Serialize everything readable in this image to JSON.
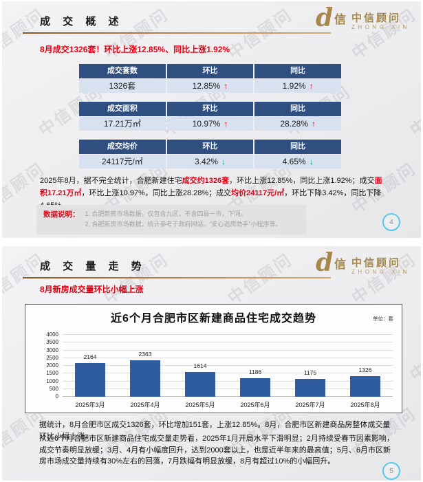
{
  "brand": {
    "swoosh_glyph": "d",
    "xin_glyph": "信",
    "name_cn": "中信顾问",
    "name_en": "ZHONG XIN",
    "gold_color": "#a5874c"
  },
  "watermark_text": "中信顾问",
  "colors": {
    "table_header_bg": "#2f4f80",
    "table_row_bg": "#d7e1f0",
    "accent_red": "#e60012",
    "accent_green": "#00a651",
    "bar_blue": "#2e5c9e",
    "circle_border": "#57c8e8",
    "header_underline": "#c9935e"
  },
  "slide1": {
    "title": "成 交 概 述",
    "headline": "8月成交1326套！环比上涨12.85%、同比上涨1.92%",
    "tables": [
      {
        "headers": [
          "成交套数",
          "环比",
          "同比"
        ],
        "row": [
          {
            "text": "1326套",
            "arrow": ""
          },
          {
            "text": "12.85%",
            "arrow": "up"
          },
          {
            "text": "1.92%",
            "arrow": "up"
          }
        ]
      },
      {
        "headers": [
          "成交面积",
          "环比",
          "同比"
        ],
        "row": [
          {
            "text": "17.21万㎡",
            "arrow": ""
          },
          {
            "text": "10.97%",
            "arrow": "up"
          },
          {
            "text": "28.28%",
            "arrow": "up"
          }
        ]
      },
      {
        "headers": [
          "成交均价",
          "环比",
          "同比"
        ],
        "row": [
          {
            "text": "24117元/㎡",
            "arrow": ""
          },
          {
            "text": "3.42%",
            "arrow": "down"
          },
          {
            "text": "4.65%",
            "arrow": "down"
          }
        ]
      }
    ],
    "summary_parts": [
      {
        "text": "2025年8月，据不完全统计，合肥新建住宅",
        "red": false
      },
      {
        "text": "成交约1326套",
        "red": true
      },
      {
        "text": "，环比上涨12.85%，同比上涨1.92%；成交",
        "red": false
      },
      {
        "text": "面积17.21万㎡",
        "red": true
      },
      {
        "text": "，环比上涨10.97%，同比上涨28.28%；成交",
        "red": false
      },
      {
        "text": "均价24117元/㎡",
        "red": true
      },
      {
        "text": "，环比下降3.42%，同比下降4.65%。",
        "red": false
      }
    ],
    "notes": {
      "label": "数据说明：",
      "lines": [
        "1. 合肥新房市场数据，仅包含九区，不含四县一市，下同。",
        "2. 合肥新房市场数据，统计参考于政府网站，“安心选房助手”小程序等。"
      ]
    },
    "page_number": "4"
  },
  "slide2": {
    "title": "成 交 量 走 势",
    "headline": "8月新房成交量环比小幅上涨",
    "paragraphs": [
      "据统计，8月合肥市区成交1326套，环比增加151套，上涨12.85%。8月，合肥市区新建商品房整体成交量环比小幅上涨。",
      "从近6个月合肥市区新建商品住宅成交量走势看，2025年1月开局水平下滑明显；2月持续受春节因素影响，成交节奏明显放缓；3月、4月有小幅度回升，达到2000套以上，也是近半年来的最高值；5月、6月市区新房市场成交量持续有30%左右的回落，7月跌幅有明显放缓，8月有超过10%的小幅回升。"
    ],
    "page_number": "5"
  },
  "chart_data": {
    "type": "bar",
    "title": "近6个月合肥市区新建商品住宅成交趋势",
    "unit_label": "单位：套",
    "categories": [
      "2025年3月",
      "2025年4月",
      "2025年5月",
      "2025年6月",
      "2025年7月",
      "2025年8月"
    ],
    "values": [
      2164,
      2363,
      1614,
      1186,
      1175,
      1326
    ],
    "ylim": [
      0,
      4000
    ],
    "ytick_step": 500,
    "grid": true,
    "legend": "none",
    "bar_color": "#2e5c9e"
  }
}
